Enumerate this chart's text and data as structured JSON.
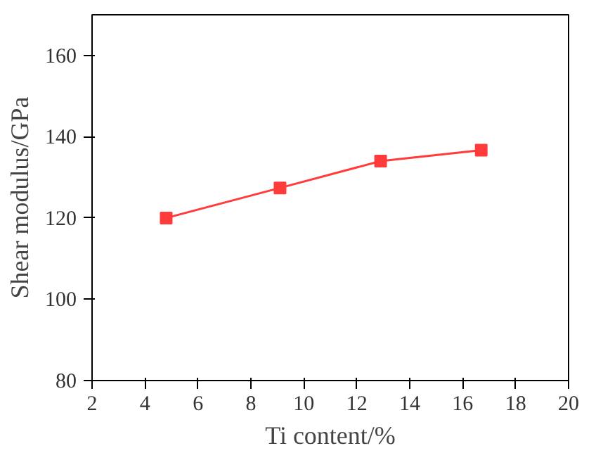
{
  "chart_data": {
    "type": "line",
    "xlabel": "Ti content/%",
    "ylabel": "Shear modulus/GPa",
    "x": [
      4.8,
      9.1,
      12.9,
      16.7
    ],
    "series": [
      {
        "color": "#ff3b3b",
        "values": [
          120,
          127.4,
          134,
          136.7
        ]
      }
    ],
    "xlim": [
      2,
      20
    ],
    "ylim": [
      80,
      170
    ],
    "xticks": [
      2,
      4,
      6,
      8,
      10,
      12,
      14,
      16,
      18,
      20
    ],
    "yticks": [
      80,
      100,
      120,
      140,
      160
    ],
    "marker": "square",
    "line_style": "solid",
    "grid": false
  }
}
